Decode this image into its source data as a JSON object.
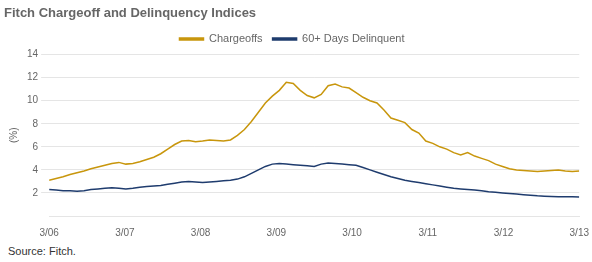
{
  "chart_data": {
    "type": "line",
    "title": "Fitch Chargeoff and Delinquency Indices",
    "y_label": "(%)",
    "source": "Source: Fitch.",
    "x": [
      0,
      1.105263,
      2.210526,
      3.315789,
      4.421053,
      5.526316,
      6.631579,
      7.736842,
      8.842105,
      9.947368,
      11.052632,
      12.157895,
      13.263158,
      14.368421,
      15.473684,
      16.578947,
      17.684211,
      18.789474,
      19.894737,
      21,
      22.105263,
      23.210526,
      24.315789,
      25.421053,
      26.526316,
      27.631579,
      28.736842,
      29.842105,
      30.947368,
      32.052632,
      33.157895,
      34.263158,
      35.368421,
      36.473684,
      37.578947,
      38.684211,
      39.789474,
      40.894737,
      42,
      43.105263,
      44.210526,
      45.315789,
      46.421053,
      47.526316,
      48.631579,
      49.736842,
      50.842105,
      51.947368,
      53.052632,
      54.157895,
      55.263158,
      56.368421,
      57.473684,
      58.578947,
      59.684211,
      60.789474,
      61.894737,
      63,
      64.105263,
      65.210526,
      66.315789,
      67.421053,
      68.526316,
      69.631579,
      70.736842,
      71.842105,
      72.947368,
      74.052632,
      75.157895,
      76.263158,
      77.368421,
      78.473684,
      79.578947,
      80.684211,
      81.789474,
      82.894737,
      84
    ],
    "xlim": [
      0,
      84
    ],
    "xticks": [
      {
        "value": 0,
        "label": "3/06"
      },
      {
        "value": 12,
        "label": "3/07"
      },
      {
        "value": 24,
        "label": "3/08"
      },
      {
        "value": 36,
        "label": "3/09"
      },
      {
        "value": 48,
        "label": "3/10"
      },
      {
        "value": 60,
        "label": "3/11"
      },
      {
        "value": 72,
        "label": "3/12"
      },
      {
        "value": 84,
        "label": "3/13"
      }
    ],
    "ylim": [
      0,
      14
    ],
    "yticks": [
      2,
      4,
      6,
      8,
      10,
      12,
      14
    ],
    "grid": true,
    "legend": "top",
    "series": [
      {
        "name": "Chargeoffs",
        "color": "#C8960C",
        "values": [
          3.1,
          3.25,
          3.4,
          3.6,
          3.75,
          3.9,
          4.1,
          4.25,
          4.4,
          4.55,
          4.65,
          4.5,
          4.55,
          4.7,
          4.9,
          5.1,
          5.4,
          5.8,
          6.2,
          6.5,
          6.55,
          6.45,
          6.5,
          6.6,
          6.55,
          6.5,
          6.6,
          7.0,
          7.5,
          8.2,
          9.0,
          9.8,
          10.4,
          10.9,
          11.6,
          11.5,
          10.9,
          10.45,
          10.25,
          10.55,
          11.3,
          11.45,
          11.2,
          11.1,
          10.7,
          10.3,
          10.0,
          9.8,
          9.2,
          8.5,
          8.3,
          8.1,
          7.5,
          7.2,
          6.5,
          6.3,
          6.0,
          5.8,
          5.5,
          5.3,
          5.5,
          5.2,
          5.0,
          4.8,
          4.5,
          4.3,
          4.1,
          4.0,
          3.95,
          3.9,
          3.85,
          3.9,
          3.95,
          4.0,
          3.9,
          3.85,
          3.9
        ]
      },
      {
        "name": "60+ Days Delinquent",
        "color": "#1F3C6E",
        "values": [
          2.3,
          2.25,
          2.2,
          2.2,
          2.15,
          2.2,
          2.3,
          2.35,
          2.4,
          2.45,
          2.4,
          2.35,
          2.4,
          2.5,
          2.55,
          2.6,
          2.65,
          2.75,
          2.85,
          2.95,
          3.0,
          2.95,
          2.9,
          2.95,
          3.0,
          3.05,
          3.1,
          3.2,
          3.4,
          3.7,
          4.0,
          4.3,
          4.5,
          4.55,
          4.5,
          4.45,
          4.4,
          4.35,
          4.3,
          4.5,
          4.6,
          4.55,
          4.5,
          4.45,
          4.4,
          4.2,
          4.0,
          3.8,
          3.6,
          3.4,
          3.25,
          3.1,
          3.0,
          2.9,
          2.8,
          2.7,
          2.6,
          2.5,
          2.4,
          2.35,
          2.3,
          2.25,
          2.2,
          2.1,
          2.05,
          2.0,
          1.95,
          1.9,
          1.85,
          1.8,
          1.75,
          1.72,
          1.7,
          1.68,
          1.68,
          1.67,
          1.65
        ]
      }
    ]
  }
}
